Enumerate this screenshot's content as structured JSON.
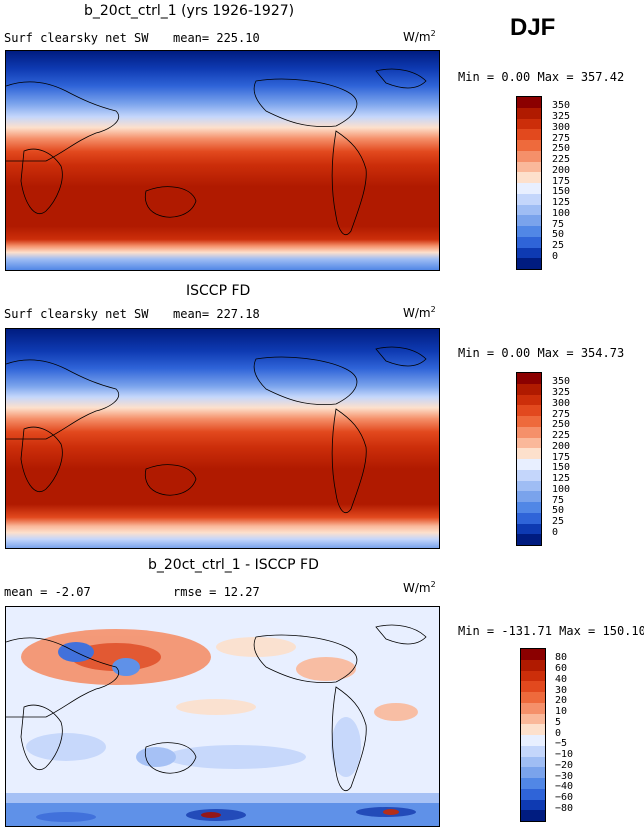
{
  "season": "DJF",
  "units": "W/m",
  "units_sup": "2",
  "panels": [
    {
      "title": "b_20ct_ctrl_1 (yrs 1926-1927)",
      "field": "Surf clearsky net SW",
      "mean": "mean= 225.10",
      "minmax": "Min =    0.00 Max = 357.42",
      "colorbar": [
        "350",
        "325",
        "300",
        "275",
        "250",
        "225",
        "200",
        "175",
        "150",
        "125",
        "100",
        "75",
        "50",
        "25",
        "0"
      ],
      "colors": [
        "#8b0000",
        "#b01a00",
        "#cc2e0a",
        "#e2491e",
        "#ee6a3c",
        "#f5906a",
        "#fab89a",
        "#fde0cc",
        "#e8efff",
        "#c4d6fb",
        "#9fbdf4",
        "#7aa3ec",
        "#5187e6",
        "#2f64d8",
        "#0e3ab2",
        "#001c80"
      ]
    },
    {
      "title": "ISCCP FD",
      "field": "Surf clearsky net SW",
      "mean": "mean= 227.18",
      "minmax": "Min =    0.00 Max = 354.73",
      "colorbar": [
        "350",
        "325",
        "300",
        "275",
        "250",
        "225",
        "200",
        "175",
        "150",
        "125",
        "100",
        "75",
        "50",
        "25",
        "0"
      ],
      "colors": [
        "#8b0000",
        "#b01a00",
        "#cc2e0a",
        "#e2491e",
        "#ee6a3c",
        "#f5906a",
        "#fab89a",
        "#fde0cc",
        "#e8efff",
        "#c4d6fb",
        "#9fbdf4",
        "#7aa3ec",
        "#5187e6",
        "#2f64d8",
        "#0e3ab2",
        "#001c80"
      ]
    },
    {
      "title": "b_20ct_ctrl_1 - ISCCP FD",
      "field": "",
      "mean": "mean =   -2.07",
      "rmse": "rmse =  12.27",
      "minmax": "Min = -131.71 Max = 150.10",
      "colorbar": [
        "80",
        "60",
        "40",
        "30",
        "20",
        "10",
        "5",
        "0",
        "−5",
        "−10",
        "−20",
        "−30",
        "−40",
        "−60",
        "−80"
      ],
      "colors": [
        "#8b0000",
        "#b01a00",
        "#cc2e0a",
        "#e2491e",
        "#ee6a3c",
        "#f5906a",
        "#fab89a",
        "#fde0cc",
        "#e8efff",
        "#c4d6fb",
        "#9fbdf4",
        "#7aa3ec",
        "#5187e6",
        "#2f64d8",
        "#0e3ab2",
        "#001c80"
      ]
    }
  ]
}
